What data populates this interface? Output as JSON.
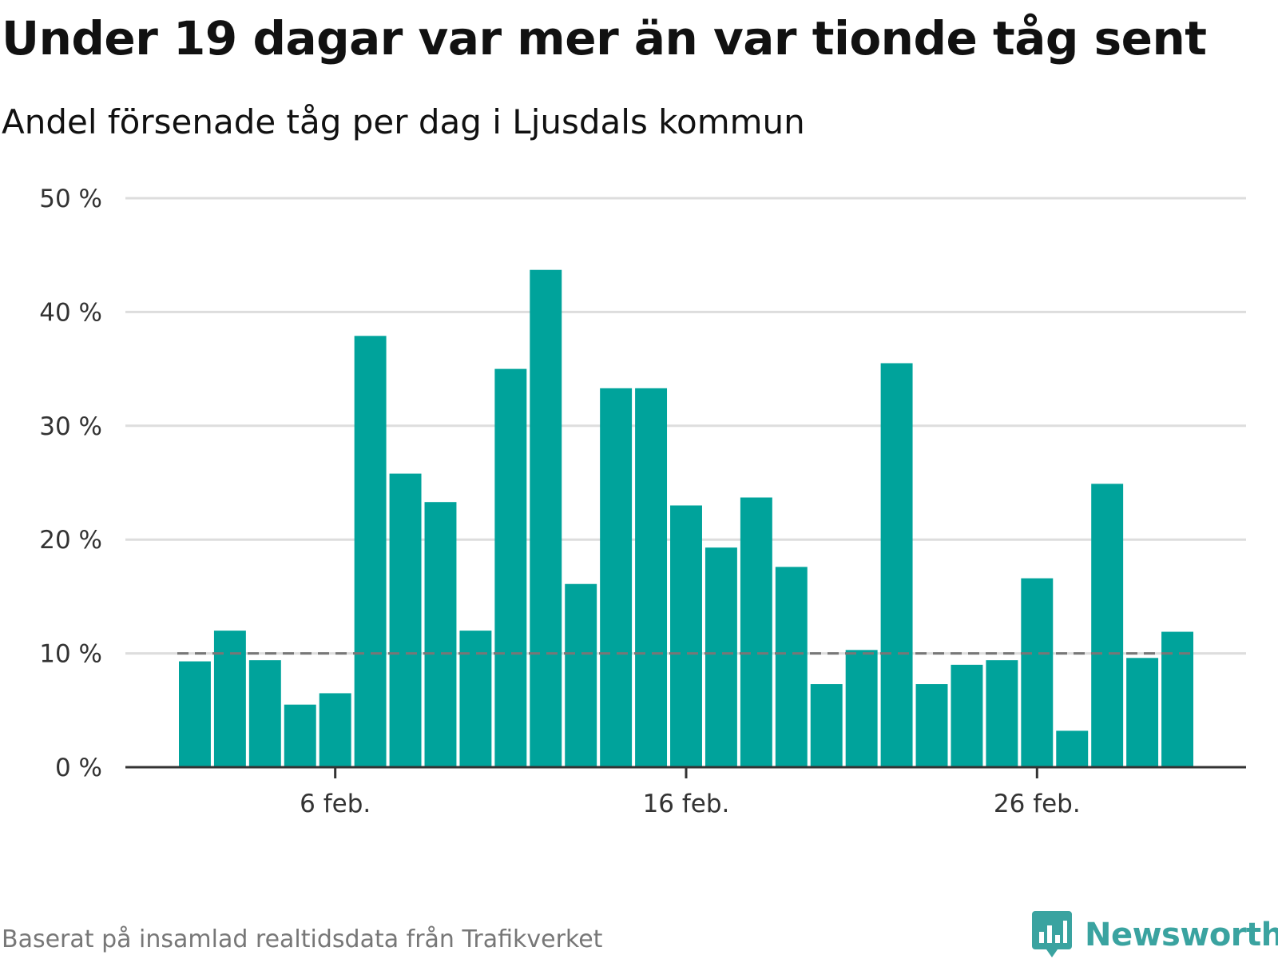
{
  "title": "Under 19 dagar var mer än var tionde tåg sent",
  "subtitle": "Andel försenade tåg per dag i Ljusdals kommun",
  "footer": {
    "source": "Baserat på insamlad realtidsdata från Trafikverket",
    "brand": "Newsworthy",
    "brand_icon": "bar-chart-speech-bubble-icon"
  },
  "colors": {
    "bar": "#00a39b",
    "grid": "#dddddd",
    "axis": "#333333",
    "reference_line": "#777777",
    "brand": "#3aa3a0"
  },
  "chart_data": {
    "type": "bar",
    "x": [
      "2 feb.",
      "3 feb.",
      "4 feb.",
      "5 feb.",
      "6 feb.",
      "7 feb.",
      "8 feb.",
      "9 feb.",
      "10 feb.",
      "11 feb.",
      "12 feb.",
      "13 feb.",
      "14 feb.",
      "15 feb.",
      "16 feb.",
      "17 feb.",
      "18 feb.",
      "19 feb.",
      "20 feb.",
      "21 feb.",
      "22 feb.",
      "23 feb.",
      "24 feb.",
      "25 feb.",
      "26 feb.",
      "27 feb.",
      "28 feb.",
      "29 feb.",
      "1 mar."
    ],
    "values": [
      9.3,
      12.0,
      9.4,
      5.5,
      6.5,
      37.9,
      25.8,
      23.3,
      12.0,
      35.0,
      43.7,
      16.1,
      33.3,
      33.3,
      23.0,
      19.3,
      23.7,
      17.6,
      7.3,
      10.3,
      35.5,
      7.3,
      9.0,
      9.4,
      16.6,
      3.2,
      24.9,
      9.6,
      11.9
    ],
    "value_unit": "%",
    "ylim": [
      0,
      50
    ],
    "yticks": [
      0,
      10,
      20,
      30,
      40,
      50
    ],
    "ytick_labels": [
      "0 %",
      "10 %",
      "20 %",
      "30 %",
      "40 %",
      "50 %"
    ],
    "xticks": [
      "6 feb.",
      "16 feb.",
      "26 feb."
    ],
    "reference_line": {
      "value": 10,
      "style": "dashed"
    },
    "grid": true,
    "legend": "none"
  }
}
